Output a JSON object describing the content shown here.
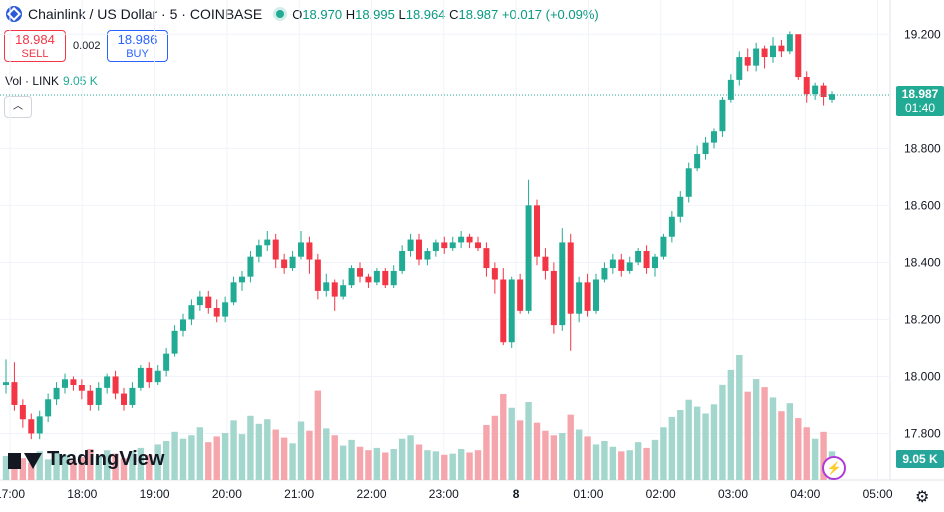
{
  "header": {
    "symbol_title": "Chainlink / US Dollar · 5 · COINBASE",
    "ohlc": {
      "o_label": "O",
      "o": "18.970",
      "h_label": "H",
      "h": "18.995",
      "l_label": "L",
      "l": "18.964",
      "c_label": "C",
      "c": "18.987",
      "change": "+0.017 (+0.09%)"
    }
  },
  "trade": {
    "sell_price": "18.984",
    "sell_label": "SELL",
    "spread": "0.002",
    "buy_price": "18.986",
    "buy_label": "BUY"
  },
  "volume_indicator": {
    "label": "Vol · LINK",
    "value": "9.05 K"
  },
  "price_badge": {
    "price": "18.987",
    "countdown": "01:40"
  },
  "volume_badge": "9.05 K",
  "branding": "TradingView",
  "colors": {
    "up": "#22ab94",
    "down": "#f23645",
    "vol_up": "#a3d6cd",
    "vol_down": "#f5a6ac",
    "grid": "#f0f3fa",
    "accent": "#2962ff"
  },
  "icons": {
    "logo": "chainlink-logo-icon",
    "flash": "lightning-icon",
    "settings": "gear-icon",
    "collapse": "chevron-up-icon"
  },
  "chart_data": {
    "type": "candlestick",
    "y_axis": {
      "min": 17.7,
      "max": 19.25,
      "ticks": [
        "19.200",
        "18.800",
        "18.600",
        "18.400",
        "18.200",
        "18.000",
        "17.800"
      ]
    },
    "x_axis": {
      "ticks": [
        "17:00",
        "18:00",
        "19:00",
        "20:00",
        "21:00",
        "22:00",
        "23:00",
        "8",
        "01:00",
        "02:00",
        "03:00",
        "04:00",
        "05:00"
      ]
    },
    "current_price": 18.987,
    "candles": [
      [
        17.97,
        17.98,
        18.06,
        17.94,
        2.1
      ],
      [
        17.98,
        17.9,
        18.05,
        17.88,
        1.6
      ],
      [
        17.9,
        17.85,
        17.92,
        17.82,
        1.9
      ],
      [
        17.85,
        17.8,
        17.87,
        17.78,
        1.5
      ],
      [
        17.8,
        17.86,
        17.88,
        17.78,
        2.5
      ],
      [
        17.86,
        17.92,
        17.94,
        17.84,
        1.8
      ],
      [
        17.92,
        17.96,
        17.98,
        17.9,
        2.4
      ],
      [
        17.96,
        17.99,
        18.01,
        17.94,
        2.2
      ],
      [
        17.99,
        17.97,
        18.0,
        17.95,
        1.7
      ],
      [
        17.97,
        17.95,
        17.99,
        17.92,
        2.0
      ],
      [
        17.95,
        17.9,
        17.97,
        17.88,
        2.7
      ],
      [
        17.9,
        17.96,
        17.98,
        17.88,
        2.1
      ],
      [
        17.96,
        18.0,
        18.01,
        17.94,
        2.6
      ],
      [
        18.0,
        17.94,
        18.02,
        17.92,
        2.3
      ],
      [
        17.94,
        17.9,
        17.96,
        17.88,
        1.9
      ],
      [
        17.9,
        17.96,
        17.98,
        17.89,
        2.5
      ],
      [
        17.96,
        18.03,
        18.04,
        17.95,
        2.8
      ],
      [
        18.03,
        17.98,
        18.05,
        17.96,
        2.2
      ],
      [
        17.98,
        18.02,
        18.04,
        17.97,
        3.1
      ],
      [
        18.02,
        18.08,
        18.1,
        18.0,
        3.4
      ],
      [
        18.08,
        18.16,
        18.18,
        18.07,
        4.2
      ],
      [
        18.16,
        18.2,
        18.22,
        18.14,
        3.6
      ],
      [
        18.2,
        18.25,
        18.27,
        18.18,
        3.9
      ],
      [
        18.25,
        18.28,
        18.3,
        18.23,
        4.6
      ],
      [
        18.28,
        18.24,
        18.3,
        18.22,
        3.3
      ],
      [
        18.24,
        18.21,
        18.27,
        18.19,
        3.8
      ],
      [
        18.21,
        18.26,
        18.28,
        18.19,
        4.1
      ],
      [
        18.26,
        18.33,
        18.35,
        18.25,
        5.2
      ],
      [
        18.33,
        18.35,
        18.37,
        18.3,
        4.0
      ],
      [
        18.35,
        18.42,
        18.44,
        18.33,
        5.6
      ],
      [
        18.42,
        18.46,
        18.48,
        18.4,
        4.9
      ],
      [
        18.46,
        18.48,
        18.51,
        18.44,
        5.3
      ],
      [
        18.48,
        18.41,
        18.5,
        18.38,
        4.4
      ],
      [
        18.41,
        18.38,
        18.43,
        18.36,
        3.7
      ],
      [
        18.38,
        18.42,
        18.44,
        18.37,
        3.2
      ],
      [
        18.42,
        18.47,
        18.51,
        18.41,
        5.1
      ],
      [
        18.47,
        18.41,
        18.49,
        18.36,
        4.3
      ],
      [
        18.41,
        18.3,
        18.43,
        18.27,
        7.8
      ],
      [
        18.3,
        18.33,
        18.36,
        18.28,
        4.5
      ],
      [
        18.33,
        18.28,
        18.34,
        18.23,
        3.9
      ],
      [
        18.28,
        18.32,
        18.34,
        18.27,
        3.0
      ],
      [
        18.32,
        18.38,
        18.39,
        18.31,
        3.5
      ],
      [
        18.38,
        18.35,
        18.4,
        18.33,
        2.9
      ],
      [
        18.35,
        18.33,
        18.36,
        18.31,
        2.6
      ],
      [
        18.33,
        18.37,
        18.38,
        18.32,
        2.8
      ],
      [
        18.37,
        18.32,
        18.38,
        18.31,
        2.4
      ],
      [
        18.32,
        18.37,
        18.39,
        18.31,
        2.7
      ],
      [
        18.37,
        18.44,
        18.46,
        18.36,
        3.6
      ],
      [
        18.44,
        18.48,
        18.5,
        18.42,
        3.9
      ],
      [
        18.48,
        18.41,
        18.5,
        18.39,
        3.1
      ],
      [
        18.41,
        18.44,
        18.45,
        18.39,
        2.6
      ],
      [
        18.44,
        18.47,
        18.48,
        18.42,
        2.5
      ],
      [
        18.47,
        18.45,
        18.49,
        18.43,
        2.2
      ],
      [
        18.45,
        18.47,
        18.49,
        18.44,
        2.3
      ],
      [
        18.47,
        18.49,
        18.51,
        18.45,
        2.7
      ],
      [
        18.49,
        18.47,
        18.5,
        18.45,
        2.4
      ],
      [
        18.47,
        18.45,
        18.49,
        18.44,
        2.6
      ],
      [
        18.45,
        18.38,
        18.47,
        18.35,
        4.8
      ],
      [
        18.38,
        18.34,
        18.4,
        18.29,
        5.6
      ],
      [
        18.34,
        18.12,
        18.38,
        18.11,
        7.5
      ],
      [
        18.12,
        18.34,
        18.35,
        18.1,
        6.3
      ],
      [
        18.34,
        18.23,
        18.36,
        18.22,
        5.2
      ],
      [
        18.23,
        18.6,
        18.69,
        18.22,
        6.8
      ],
      [
        18.6,
        18.42,
        18.62,
        18.39,
        5.0
      ],
      [
        18.42,
        18.37,
        18.45,
        18.34,
        4.3
      ],
      [
        18.37,
        18.18,
        18.4,
        18.15,
        3.9
      ],
      [
        18.18,
        18.47,
        18.52,
        18.16,
        4.1
      ],
      [
        18.47,
        18.22,
        18.5,
        18.09,
        5.7
      ],
      [
        18.22,
        18.33,
        18.35,
        18.19,
        4.4
      ],
      [
        18.33,
        18.23,
        18.36,
        18.21,
        3.8
      ],
      [
        18.23,
        18.34,
        18.36,
        18.22,
        3.1
      ],
      [
        18.34,
        18.38,
        18.4,
        18.33,
        3.4
      ],
      [
        18.38,
        18.41,
        18.43,
        18.36,
        2.9
      ],
      [
        18.41,
        18.37,
        18.43,
        18.35,
        2.5
      ],
      [
        18.37,
        18.4,
        18.42,
        18.36,
        2.6
      ],
      [
        18.4,
        18.44,
        18.45,
        18.39,
        3.3
      ],
      [
        18.44,
        18.38,
        18.46,
        18.36,
        2.8
      ],
      [
        18.38,
        18.42,
        18.43,
        18.35,
        3.5
      ],
      [
        18.42,
        18.49,
        18.5,
        18.41,
        4.6
      ],
      [
        18.49,
        18.56,
        18.58,
        18.47,
        5.5
      ],
      [
        18.56,
        18.63,
        18.65,
        18.54,
        6.1
      ],
      [
        18.63,
        18.73,
        18.75,
        18.61,
        7.0
      ],
      [
        18.73,
        18.78,
        18.81,
        18.72,
        6.4
      ],
      [
        18.78,
        18.82,
        18.84,
        18.76,
        5.8
      ],
      [
        18.82,
        18.86,
        18.87,
        18.8,
        6.6
      ],
      [
        18.86,
        18.97,
        18.98,
        18.84,
        8.3
      ],
      [
        18.97,
        19.04,
        19.06,
        18.96,
        9.6
      ],
      [
        19.04,
        19.12,
        19.14,
        19.02,
        10.9
      ],
      [
        19.12,
        19.09,
        19.15,
        19.07,
        7.7
      ],
      [
        19.09,
        19.15,
        19.17,
        19.07,
        8.8
      ],
      [
        19.15,
        19.12,
        19.16,
        19.08,
        8.1
      ],
      [
        19.12,
        19.16,
        19.19,
        19.1,
        7.2
      ],
      [
        19.16,
        19.14,
        19.18,
        19.12,
        6.0
      ],
      [
        19.14,
        19.2,
        19.21,
        19.13,
        6.7
      ],
      [
        19.2,
        19.05,
        19.2,
        19.04,
        5.4
      ],
      [
        19.05,
        18.99,
        19.07,
        18.96,
        4.6
      ],
      [
        18.99,
        19.02,
        19.03,
        18.97,
        3.6
      ],
      [
        19.02,
        18.98,
        19.03,
        18.95,
        4.2
      ],
      [
        18.97,
        18.99,
        19.0,
        18.96,
        2.5
      ]
    ]
  }
}
